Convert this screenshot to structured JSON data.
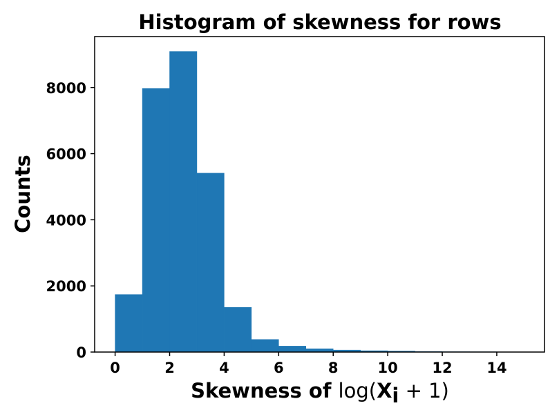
{
  "chart_data": {
    "type": "bar",
    "title": "Histogram of skewness for rows",
    "xlabel": "Skewness of ",
    "xlabel_math": {
      "prefix": "log(",
      "bold": "X",
      "subscript": "i",
      "suffix": " + 1)"
    },
    "ylabel": "Counts",
    "xlim": [
      -0.75,
      15.75
    ],
    "ylim": [
      0,
      9540
    ],
    "grid": false,
    "bar_color": "#1f77b4",
    "bin_width": 1,
    "bins": [
      {
        "start": 0,
        "end": 1,
        "count": 1740
      },
      {
        "start": 1,
        "end": 2,
        "count": 7970
      },
      {
        "start": 2,
        "end": 3,
        "count": 9090
      },
      {
        "start": 3,
        "end": 4,
        "count": 5410
      },
      {
        "start": 4,
        "end": 5,
        "count": 1350
      },
      {
        "start": 5,
        "end": 6,
        "count": 380
      },
      {
        "start": 6,
        "end": 7,
        "count": 180
      },
      {
        "start": 7,
        "end": 8,
        "count": 100
      },
      {
        "start": 8,
        "end": 9,
        "count": 60
      },
      {
        "start": 9,
        "end": 10,
        "count": 40
      },
      {
        "start": 10,
        "end": 11,
        "count": 30
      },
      {
        "start": 11,
        "end": 12,
        "count": 15
      },
      {
        "start": 12,
        "end": 13,
        "count": 10
      },
      {
        "start": 13,
        "end": 14,
        "count": 8
      },
      {
        "start": 14,
        "end": 15,
        "count": 5
      }
    ],
    "x_ticks": [
      0,
      2,
      4,
      6,
      8,
      10,
      12,
      14
    ],
    "y_ticks": [
      0,
      2000,
      4000,
      6000,
      8000
    ]
  }
}
